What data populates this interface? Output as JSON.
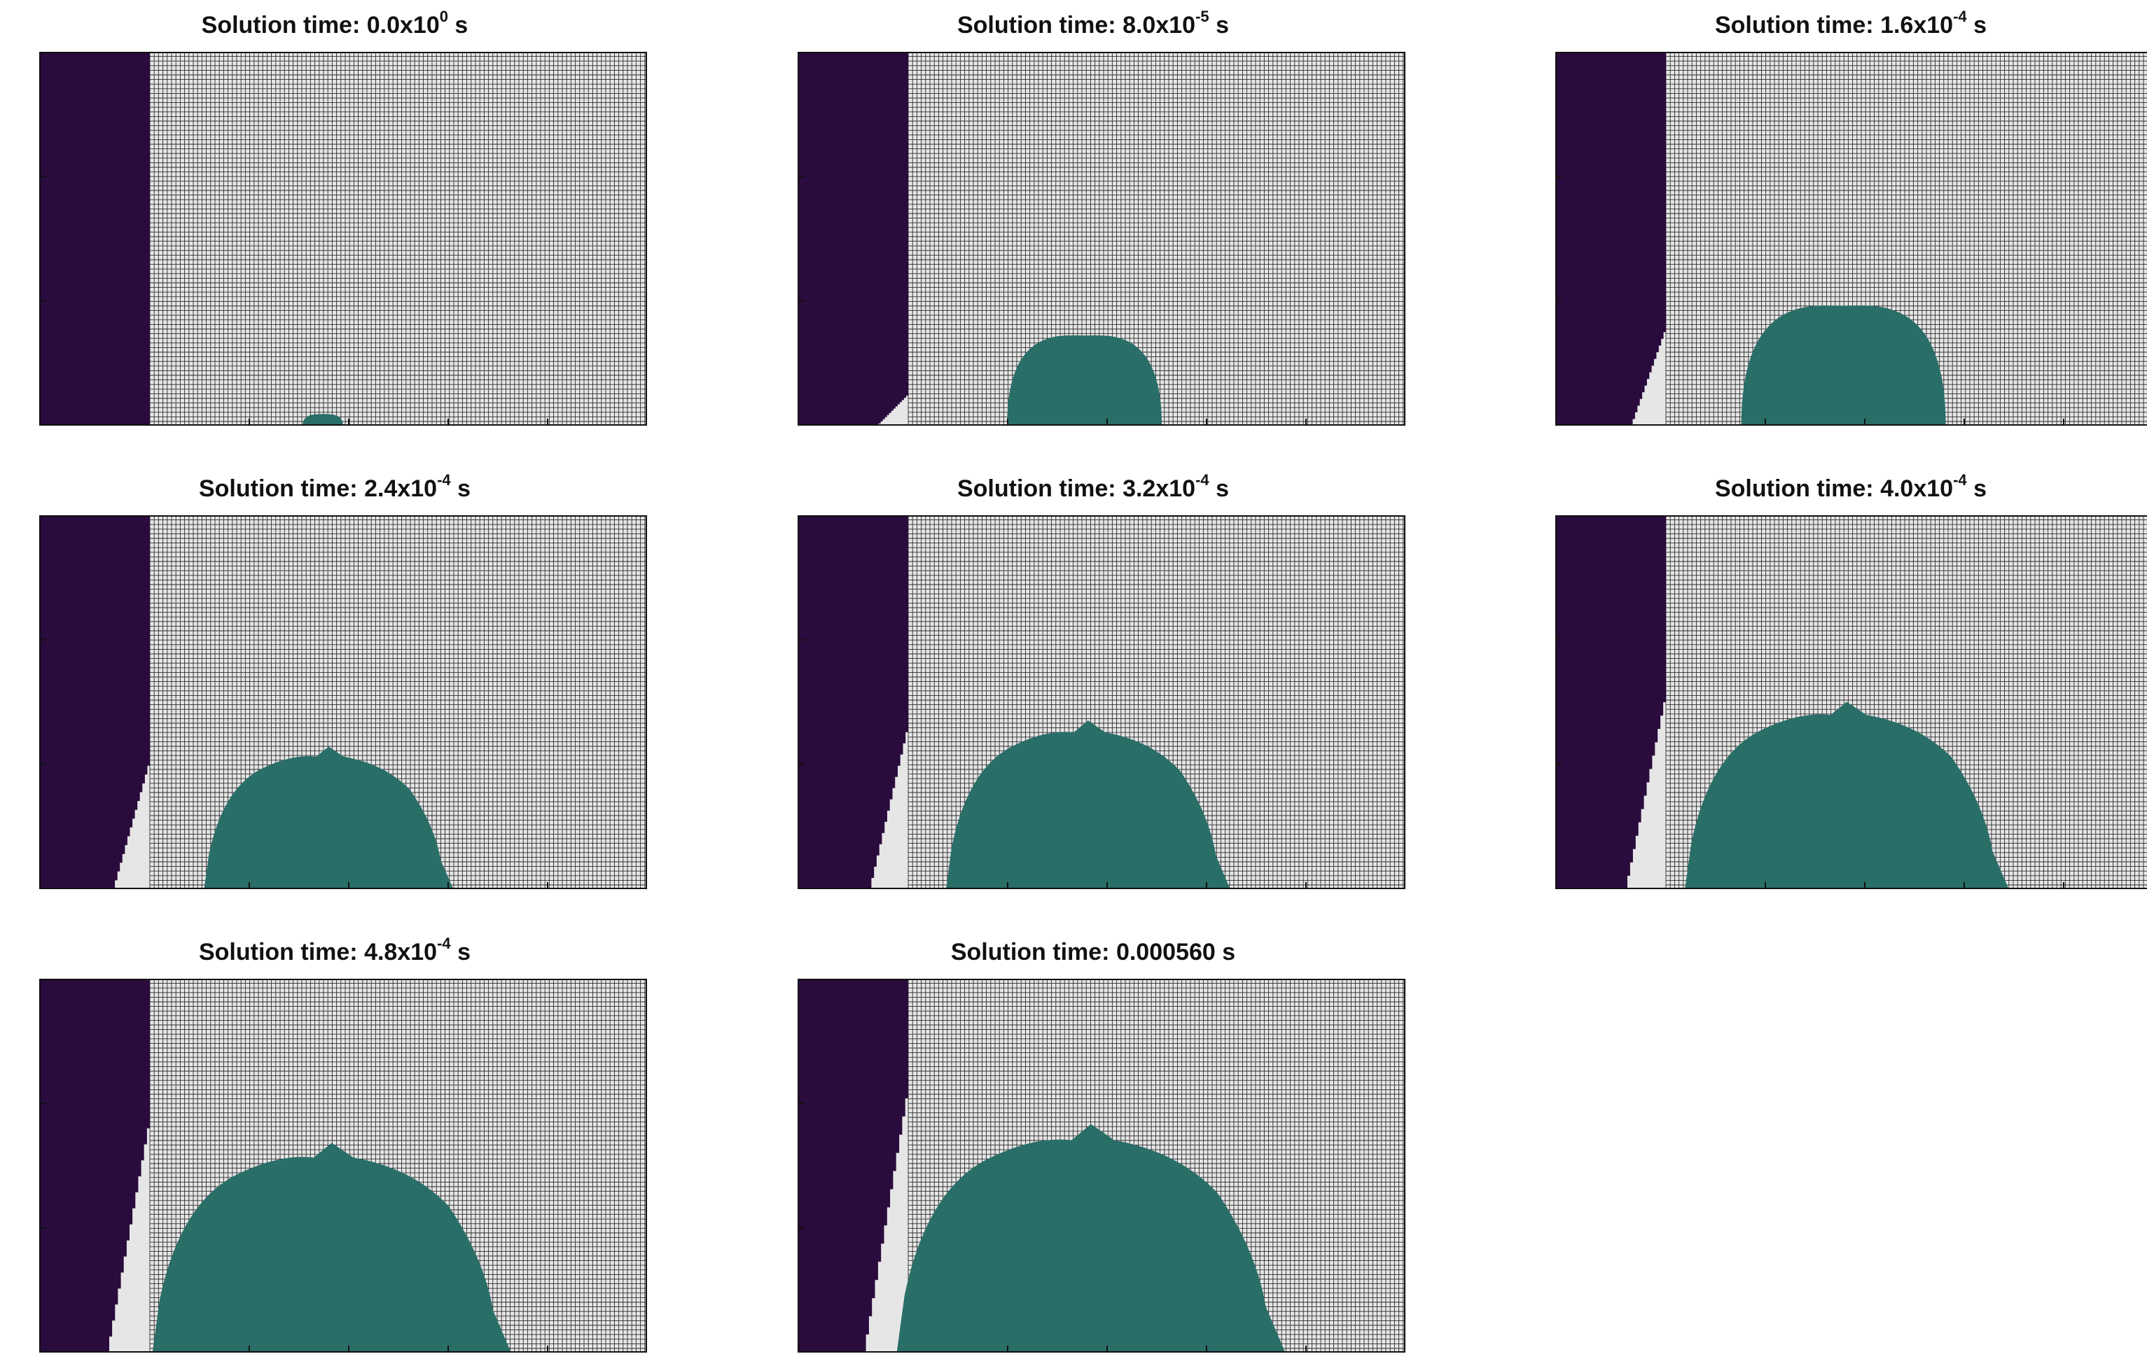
{
  "colors": {
    "solid_region": "#2a0b3d",
    "empty_cell": "#e6e6e6",
    "mesh_line": "#2b2b2b",
    "droplet": "#2a6e68",
    "frame": "#111111"
  },
  "panels": [
    {
      "title": "Solution time: 0.0x10",
      "exp": "0",
      "unit": " s",
      "droplet_height_fraction": 0.03,
      "droplet_width_fraction": 0.08,
      "wall_erosion_fraction": 0.0
    },
    {
      "title": "Solution time: 8.0x10",
      "exp": "-5",
      "unit": " s",
      "droplet_height_fraction": 0.24,
      "droplet_width_fraction": 0.31,
      "wall_erosion_fraction": 0.08
    },
    {
      "title": "Solution time: 1.6x10",
      "exp": "-4",
      "unit": " s",
      "droplet_height_fraction": 0.32,
      "droplet_width_fraction": 0.41,
      "wall_erosion_fraction": 0.25
    },
    {
      "title": "Solution time: 2.4x10",
      "exp": "-4",
      "unit": " s",
      "droplet_height_fraction": 0.38,
      "droplet_width_fraction": 0.5,
      "wall_erosion_fraction": 0.33
    },
    {
      "title": "Solution time: 3.2x10",
      "exp": "-4",
      "unit": " s",
      "droplet_height_fraction": 0.45,
      "droplet_width_fraction": 0.57,
      "wall_erosion_fraction": 0.42
    },
    {
      "title": "Solution time: 4.0x10",
      "exp": "-4",
      "unit": " s",
      "droplet_height_fraction": 0.5,
      "droplet_width_fraction": 0.65,
      "wall_erosion_fraction": 0.5
    },
    {
      "title": "Solution time: 4.8x10",
      "exp": "-4",
      "unit": " s",
      "droplet_height_fraction": 0.56,
      "droplet_width_fraction": 0.72,
      "wall_erosion_fraction": 0.6
    },
    {
      "title": "Solution time: 0.000560 s",
      "exp": "",
      "unit": "",
      "droplet_height_fraction": 0.61,
      "droplet_width_fraction": 0.78,
      "wall_erosion_fraction": 0.68
    }
  ]
}
